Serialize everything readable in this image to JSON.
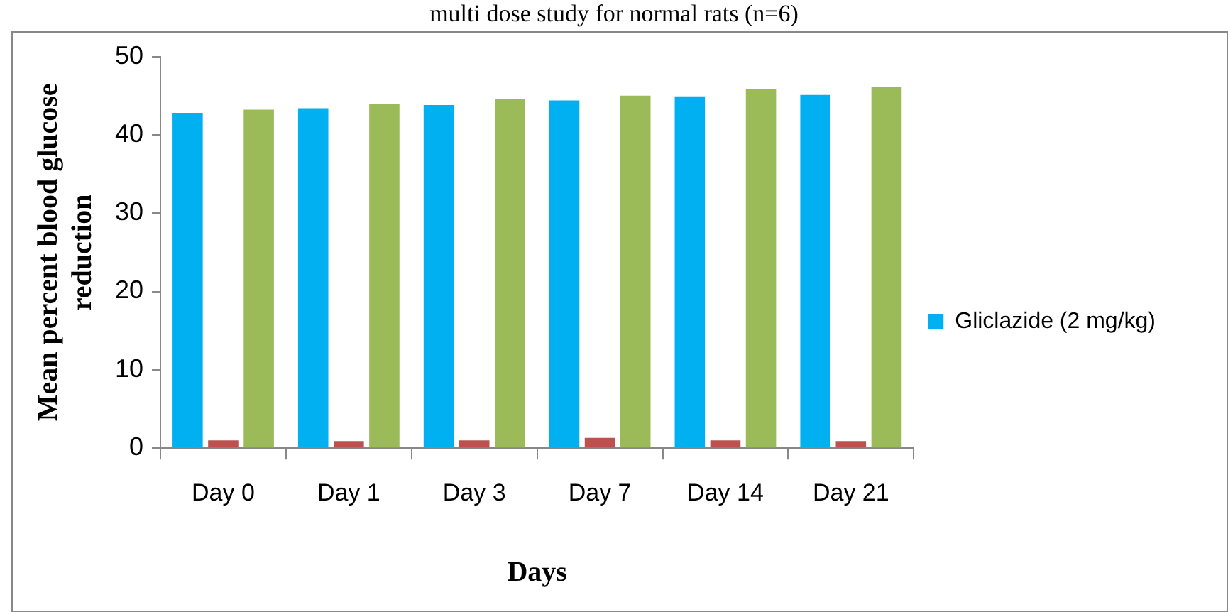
{
  "chart_data": {
    "type": "bar",
    "title": "multi dose study for normal rats (n=6)",
    "xlabel": "Days",
    "ylabel": "Mean percent blood glucose reduction",
    "categories": [
      "Day 0",
      "Day 1",
      "Day 3",
      "Day 7",
      "Day 14",
      "Day 21"
    ],
    "series": [
      {
        "name": "Gliclazide (2 mg/kg)",
        "color": "#00b0f0",
        "values": [
          42.8,
          43.4,
          43.8,
          44.4,
          44.9,
          45.1
        ]
      },
      {
        "color": "#c0504d",
        "values": [
          1,
          0.9,
          1,
          1.3,
          1,
          0.9
        ]
      },
      {
        "color": "#9bbb59",
        "values": [
          43.2,
          43.9,
          44.6,
          45,
          45.8,
          46.1
        ]
      }
    ],
    "ylim": [
      0,
      50
    ],
    "yticks": [
      0,
      10,
      20,
      30,
      40,
      50
    ],
    "grid": false,
    "legend": "right"
  }
}
